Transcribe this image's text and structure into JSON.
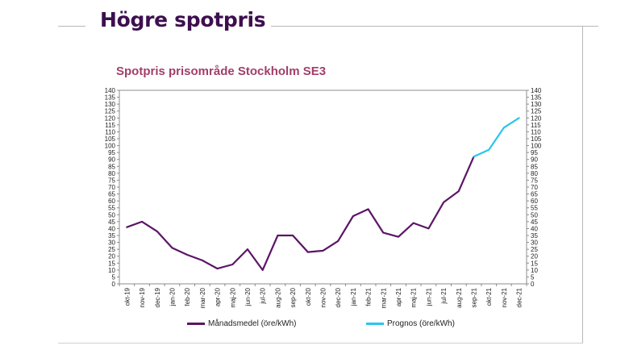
{
  "slide": {
    "title": "Högre spotpris"
  },
  "chart_data": {
    "type": "line",
    "title": "Spotpris prisområde Stockholm SE3",
    "xlabel": "",
    "ylabel": "",
    "ylim": [
      0,
      140
    ],
    "ytick_step": 5,
    "grid": false,
    "legend_position": "bottom",
    "categories": [
      "okt-19",
      "nov-19",
      "dec-19",
      "jan-20",
      "feb-20",
      "mar-20",
      "apr-20",
      "maj-20",
      "jun-20",
      "jul-20",
      "aug-20",
      "sep-20",
      "okt-20",
      "nov-20",
      "dec-20",
      "jan-21",
      "feb-21",
      "mar-21",
      "apr-21",
      "maj-21",
      "jun-21",
      "jul-21",
      "aug-21",
      "sep-21",
      "okt-21",
      "nov-21",
      "dec-21"
    ],
    "series": [
      {
        "name": "Månadsmedel (öre/kWh)",
        "color": "#5c1566",
        "values": [
          41,
          45,
          38,
          26,
          21,
          17,
          11,
          14,
          25,
          10,
          35,
          35,
          23,
          24,
          31,
          49,
          54,
          37,
          34,
          44,
          40,
          59,
          67,
          92,
          null,
          null,
          null
        ]
      },
      {
        "name": "Prognos (öre/kWh)",
        "color": "#29c6ec",
        "values": [
          null,
          null,
          null,
          null,
          null,
          null,
          null,
          null,
          null,
          null,
          null,
          null,
          null,
          null,
          null,
          null,
          null,
          null,
          null,
          null,
          null,
          null,
          null,
          92,
          97,
          113,
          120
        ]
      }
    ]
  }
}
